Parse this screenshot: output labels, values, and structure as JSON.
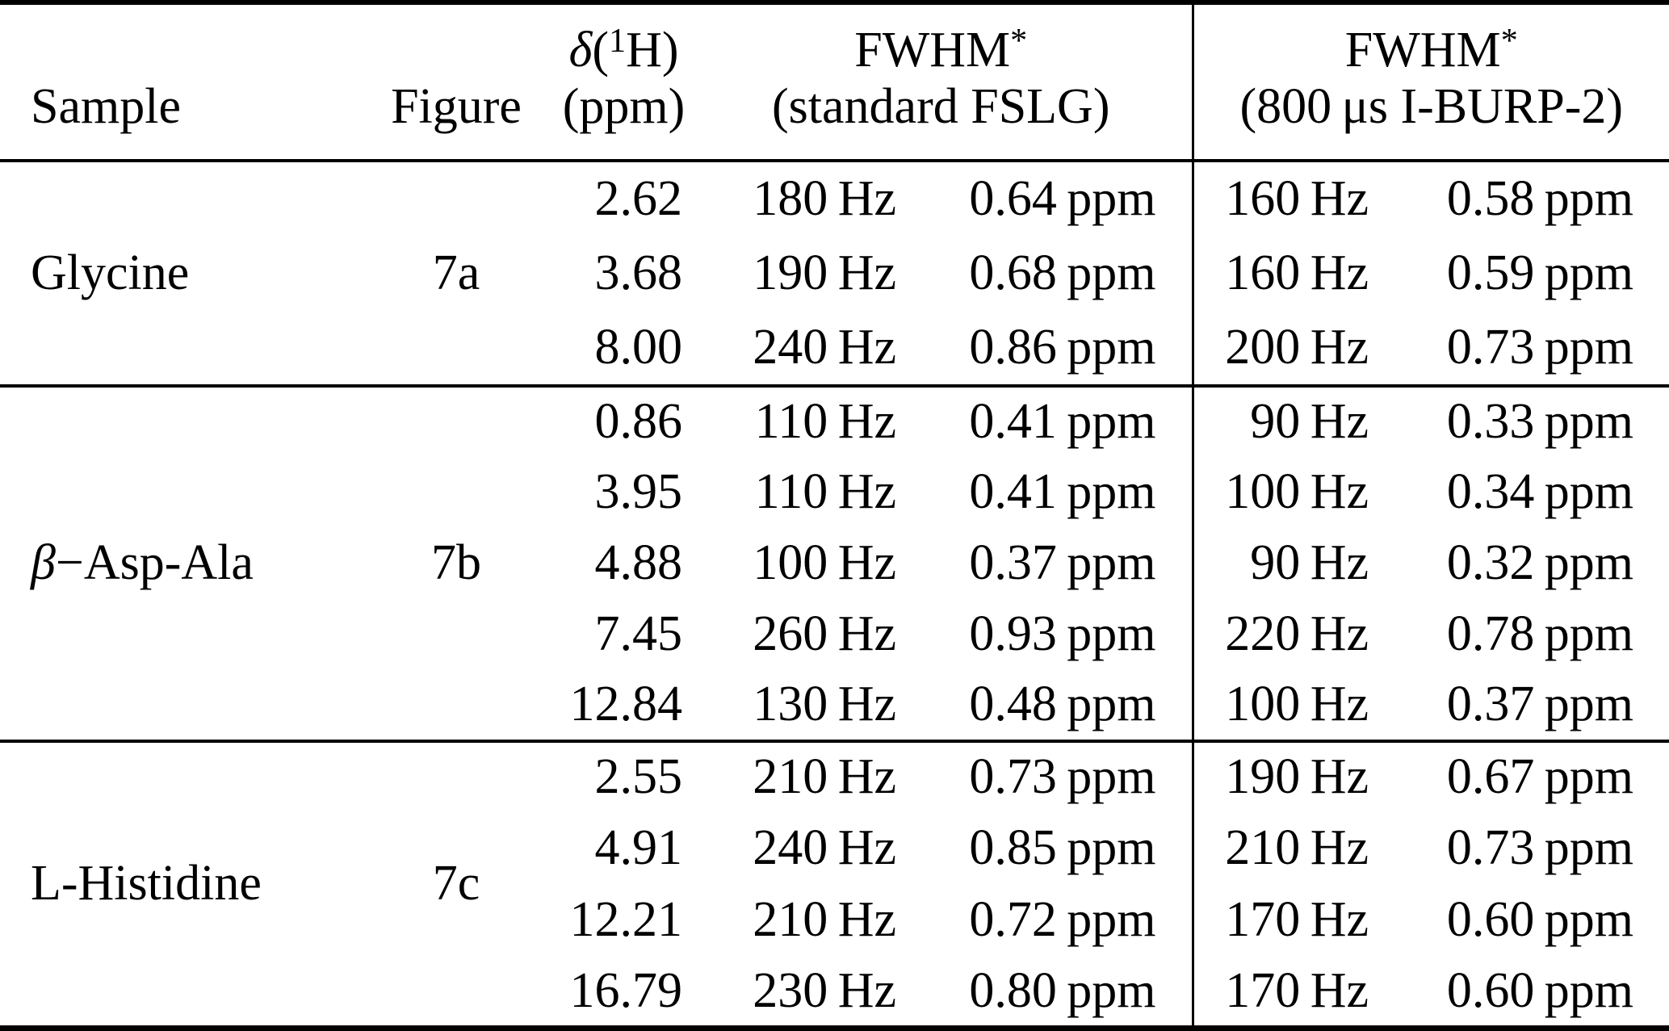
{
  "table": {
    "header": {
      "sample": "Sample",
      "figure": "Figure",
      "delta": {
        "sym": "δ",
        "open": "(",
        "sup": "1",
        "close": "H)",
        "unit": "(ppm)"
      },
      "fslg": {
        "title": "FWHM",
        "star": "*",
        "subtitle": "(standard FSLG)"
      },
      "iburp": {
        "title": "FWHM",
        "star": "*",
        "subtitle": "(800 μs I-BURP-2)"
      }
    },
    "sections": [
      {
        "sample_italic": "",
        "sample": "Glycine",
        "figure": "7a",
        "rows": [
          {
            "delta": "2.62",
            "fslg_hz": "180 Hz",
            "fslg_ppm": "0.64 ppm",
            "iburp_hz": "160 Hz",
            "iburp_ppm": "0.58 ppm"
          },
          {
            "delta": "3.68",
            "fslg_hz": "190 Hz",
            "fslg_ppm": "0.68 ppm",
            "iburp_hz": "160 Hz",
            "iburp_ppm": "0.59 ppm"
          },
          {
            "delta": "8.00",
            "fslg_hz": "240 Hz",
            "fslg_ppm": "0.86 ppm",
            "iburp_hz": "200 Hz",
            "iburp_ppm": "0.73 ppm"
          }
        ]
      },
      {
        "sample_italic": "β",
        "sample": "−Asp-Ala",
        "figure": "7b",
        "rows": [
          {
            "delta": "0.86",
            "fslg_hz": "110 Hz",
            "fslg_ppm": "0.41 ppm",
            "iburp_hz": "90 Hz",
            "iburp_ppm": "0.33 ppm"
          },
          {
            "delta": "3.95",
            "fslg_hz": "110 Hz",
            "fslg_ppm": "0.41 ppm",
            "iburp_hz": "100 Hz",
            "iburp_ppm": "0.34 ppm"
          },
          {
            "delta": "4.88",
            "fslg_hz": "100 Hz",
            "fslg_ppm": "0.37 ppm",
            "iburp_hz": "90 Hz",
            "iburp_ppm": "0.32 ppm"
          },
          {
            "delta": "7.45",
            "fslg_hz": "260 Hz",
            "fslg_ppm": "0.93 ppm",
            "iburp_hz": "220 Hz",
            "iburp_ppm": "0.78 ppm"
          },
          {
            "delta": "12.84",
            "fslg_hz": "130 Hz",
            "fslg_ppm": "0.48 ppm",
            "iburp_hz": "100 Hz",
            "iburp_ppm": "0.37 ppm"
          }
        ]
      },
      {
        "sample_italic": "",
        "sample": "L-Histidine",
        "figure": "7c",
        "rows": [
          {
            "delta": "2.55",
            "fslg_hz": "210 Hz",
            "fslg_ppm": "0.73 ppm",
            "iburp_hz": "190 Hz",
            "iburp_ppm": "0.67 ppm"
          },
          {
            "delta": "4.91",
            "fslg_hz": "240 Hz",
            "fslg_ppm": "0.85 ppm",
            "iburp_hz": "210 Hz",
            "iburp_ppm": "0.73 ppm"
          },
          {
            "delta": "12.21",
            "fslg_hz": "210 Hz",
            "fslg_ppm": "0.72 ppm",
            "iburp_hz": "170 Hz",
            "iburp_ppm": "0.60 ppm"
          },
          {
            "delta": "16.79",
            "fslg_hz": "230 Hz",
            "fslg_ppm": "0.80 ppm",
            "iburp_hz": "170 Hz",
            "iburp_ppm": "0.60 ppm"
          }
        ]
      }
    ]
  },
  "colors": {
    "text": "#000000",
    "background": "#ffffff",
    "rule": "#000000"
  }
}
